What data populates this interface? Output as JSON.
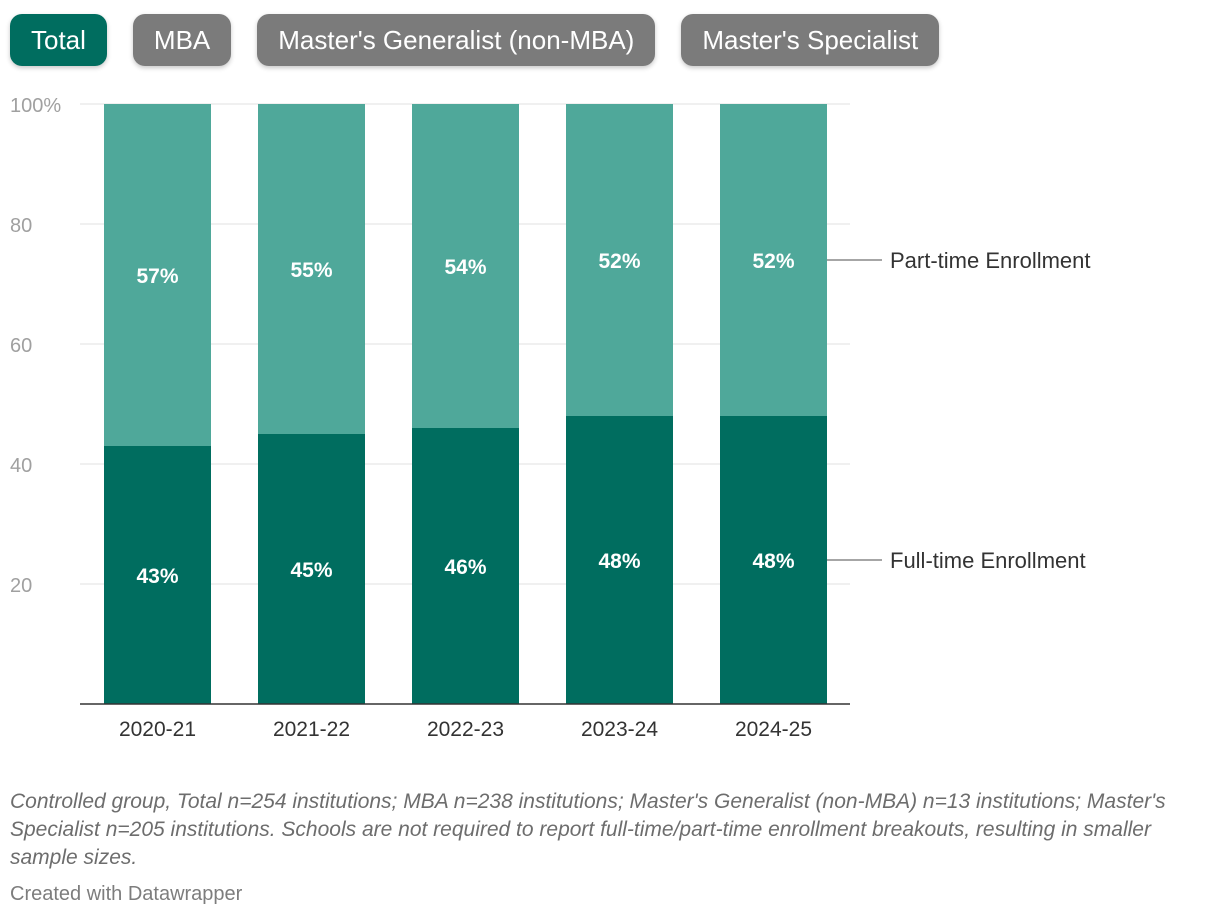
{
  "tabs": [
    {
      "label": "Total",
      "active": true
    },
    {
      "label": "MBA",
      "active": false
    },
    {
      "label": "Master's Generalist (non-MBA)",
      "active": false
    },
    {
      "label": "Master's Specialist",
      "active": false
    }
  ],
  "colors": {
    "full_time": "#006d5f",
    "part_time": "#4fa89a",
    "tab_active": "#006d5f",
    "tab_inactive": "#7b7b7b"
  },
  "chart_data": {
    "type": "bar",
    "stacked": true,
    "categories": [
      "2020-21",
      "2021-22",
      "2022-23",
      "2023-24",
      "2024-25"
    ],
    "series": [
      {
        "name": "Full-time Enrollment",
        "values": [
          43,
          45,
          46,
          48,
          48
        ],
        "labels": [
          "43%",
          "45%",
          "46%",
          "48%",
          "48%"
        ]
      },
      {
        "name": "Part-time Enrollment",
        "values": [
          57,
          55,
          54,
          52,
          52
        ],
        "labels": [
          "57%",
          "55%",
          "54%",
          "52%",
          "52%"
        ]
      }
    ],
    "ylim": [
      0,
      100
    ],
    "yticks": [
      20,
      40,
      60,
      80,
      100
    ],
    "ytick_labels": [
      "20",
      "40",
      "60",
      "80",
      "100%"
    ],
    "grid": true,
    "legend": "direct-labels-right"
  },
  "notes": "Controlled group, Total n=254 institutions; MBA n=238 institutions; Master's Generalist (non-MBA) n=13 institutions; Master's Specialist n=205 institutions. Schools are not required to report full-time/part-time enrollment breakouts, resulting in smaller sample sizes.",
  "credit": "Created with Datawrapper"
}
